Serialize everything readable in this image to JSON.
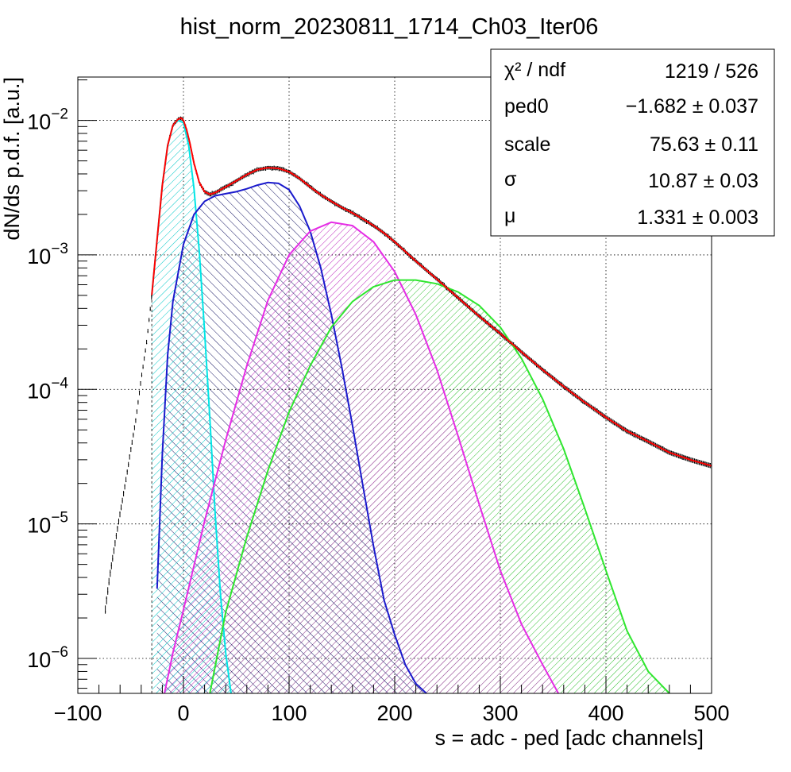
{
  "chart_data": {
    "type": "line",
    "title": "hist_norm_20230811_1714_Ch03_Iter06",
    "xlabel": "s = adc - ped [adc channels]",
    "ylabel": "dN/ds p.d.f. [a.u.]",
    "xlim": [
      -100,
      500
    ],
    "ylim": [
      5.5e-07,
      0.021
    ],
    "yscale": "log",
    "grid": true,
    "x_ticks": [
      {
        "v": -100,
        "label": "−100"
      },
      {
        "v": 0,
        "label": "0"
      },
      {
        "v": 100,
        "label": "100"
      },
      {
        "v": 200,
        "label": "200"
      },
      {
        "v": 300,
        "label": "300"
      },
      {
        "v": 400,
        "label": "400"
      },
      {
        "v": 500,
        "label": "500"
      }
    ],
    "y_ticks": [
      {
        "v": 1e-06,
        "base": "10",
        "exp": "−6"
      },
      {
        "v": 1e-05,
        "base": "10",
        "exp": "−5"
      },
      {
        "v": 0.0001,
        "base": "10",
        "exp": "−4"
      },
      {
        "v": 0.001,
        "base": "10",
        "exp": "−3"
      },
      {
        "v": 0.01,
        "base": "10",
        "exp": "−2"
      }
    ],
    "data_series": {
      "color": "#000000",
      "x": [
        -75,
        -70,
        -65,
        -60,
        -55,
        -50,
        -45,
        -40,
        -35,
        -32,
        -30,
        -25,
        -20,
        -15,
        -10,
        -5,
        -2,
        0,
        3,
        6,
        10,
        15,
        20,
        25,
        30,
        40,
        50,
        60,
        70,
        80,
        90,
        100,
        110,
        120,
        130,
        140,
        150,
        160,
        170,
        180,
        190,
        200,
        220,
        240,
        260,
        280,
        300,
        320,
        340,
        360,
        380,
        400,
        420,
        440,
        460,
        480,
        500
      ],
      "y": [
        2e-06,
        4e-06,
        7e-06,
        1.2e-05,
        2e-05,
        3.5e-05,
        6e-05,
        0.00012,
        0.00022,
        0.00036,
        0.0005,
        0.0013,
        0.0033,
        0.0065,
        0.0092,
        0.0102,
        0.0104,
        0.01,
        0.0085,
        0.0068,
        0.0048,
        0.00345,
        0.00295,
        0.00282,
        0.0029,
        0.0032,
        0.00355,
        0.00395,
        0.0043,
        0.00445,
        0.0044,
        0.00415,
        0.0037,
        0.0032,
        0.0028,
        0.0025,
        0.00225,
        0.00205,
        0.00185,
        0.00165,
        0.00145,
        0.00125,
        0.0009,
        0.00066,
        0.00048,
        0.00035,
        0.00026,
        0.00019,
        0.00014,
        0.000105,
        8e-05,
        6.2e-05,
        4.9e-05,
        4.1e-05,
        3.4e-05,
        3e-05,
        2.7e-05
      ]
    },
    "series": [
      {
        "color": "#ff0000",
        "x": [
          -30,
          -25,
          -20,
          -15,
          -10,
          -5,
          -2,
          0,
          3,
          6,
          10,
          15,
          20,
          25,
          30,
          40,
          50,
          60,
          70,
          80,
          90,
          100,
          110,
          120,
          130,
          140,
          150,
          160,
          170,
          180,
          190,
          200,
          220,
          240,
          260,
          280,
          300,
          320,
          340,
          360,
          380,
          400,
          420,
          440,
          460,
          480,
          500
        ],
        "y": [
          0.0005,
          0.0013,
          0.0033,
          0.0065,
          0.0092,
          0.0102,
          0.0104,
          0.01,
          0.0085,
          0.0068,
          0.0048,
          0.00345,
          0.00295,
          0.00282,
          0.0029,
          0.0032,
          0.00355,
          0.00395,
          0.0043,
          0.00445,
          0.0044,
          0.00415,
          0.0037,
          0.0032,
          0.0028,
          0.0025,
          0.00225,
          0.00205,
          0.00185,
          0.00165,
          0.00145,
          0.00125,
          0.0009,
          0.00066,
          0.00048,
          0.00035,
          0.00026,
          0.00019,
          0.00014,
          0.000105,
          8e-05,
          6.2e-05,
          4.9e-05,
          4.1e-05,
          3.4e-05,
          3e-05,
          2.7e-05
        ]
      },
      {
        "color": "#00e5e5",
        "x": [
          -30,
          -25,
          -20,
          -15,
          -10,
          -5,
          0,
          5,
          10,
          15,
          20,
          25,
          30,
          35,
          40,
          45
        ],
        "y": [
          0.0005,
          0.0013,
          0.0033,
          0.0065,
          0.0092,
          0.01,
          0.0096,
          0.0065,
          0.0031,
          0.00105,
          0.00027,
          6e-05,
          1.2e-05,
          3e-06,
          1.1e-06,
          5.5e-07
        ]
      },
      {
        "color": "#1a1acc",
        "x": [
          -25,
          -20,
          -15,
          -10,
          0,
          10,
          20,
          30,
          40,
          50,
          60,
          70,
          80,
          90,
          100,
          110,
          120,
          130,
          140,
          150,
          160,
          170,
          180,
          190,
          200,
          210,
          220,
          230
        ],
        "y": [
          3.3e-06,
          3.3e-05,
          0.00018,
          0.00045,
          0.0012,
          0.002,
          0.0025,
          0.00275,
          0.00285,
          0.00295,
          0.0031,
          0.0033,
          0.00345,
          0.0034,
          0.00305,
          0.0023,
          0.0015,
          0.0008,
          0.00036,
          0.000145,
          5.4e-05,
          1.9e-05,
          6.8e-06,
          2.7e-06,
          1.5e-06,
          9e-07,
          6.5e-07,
          5.5e-07
        ]
      },
      {
        "color": "#e52ce5",
        "x": [
          -18,
          -10,
          0,
          20,
          40,
          60,
          80,
          100,
          120,
          140,
          160,
          180,
          200,
          220,
          240,
          260,
          280,
          300,
          320,
          340,
          355
        ],
        "y": [
          5.5e-07,
          1.1e-06,
          2.3e-06,
          1.05e-05,
          4.2e-05,
          0.00015,
          0.00046,
          0.001,
          0.0015,
          0.00175,
          0.00165,
          0.00125,
          0.00075,
          0.00036,
          0.00014,
          4.5e-05,
          1.4e-05,
          4.5e-06,
          1.8e-06,
          9e-07,
          5.5e-07
        ]
      },
      {
        "color": "#2ee62e",
        "x": [
          25,
          40,
          60,
          80,
          100,
          120,
          140,
          160,
          180,
          200,
          220,
          240,
          260,
          280,
          300,
          320,
          340,
          360,
          380,
          400,
          420,
          440,
          460
        ],
        "y": [
          5.5e-07,
          2.2e-06,
          8e-06,
          2.5e-05,
          6.8e-05,
          0.00015,
          0.00029,
          0.00045,
          0.00058,
          0.00065,
          0.00065,
          0.00061,
          0.00053,
          0.00042,
          0.00029,
          0.00017,
          8.5e-05,
          3.6e-05,
          1.3e-05,
          4.5e-06,
          1.6e-06,
          8e-07,
          5.5e-07
        ]
      }
    ],
    "stats_box": {
      "rows": [
        {
          "label": "χ² / ndf",
          "value": "1219 / 526"
        },
        {
          "label": "ped0",
          "value": "−1.682 ± 0.037"
        },
        {
          "label": "scale",
          "value": "75.63 ± 0.11"
        },
        {
          "label": "σ",
          "value": "10.87 ± 0.03"
        },
        {
          "label": "μ",
          "value": "1.331 ± 0.003"
        }
      ]
    }
  }
}
